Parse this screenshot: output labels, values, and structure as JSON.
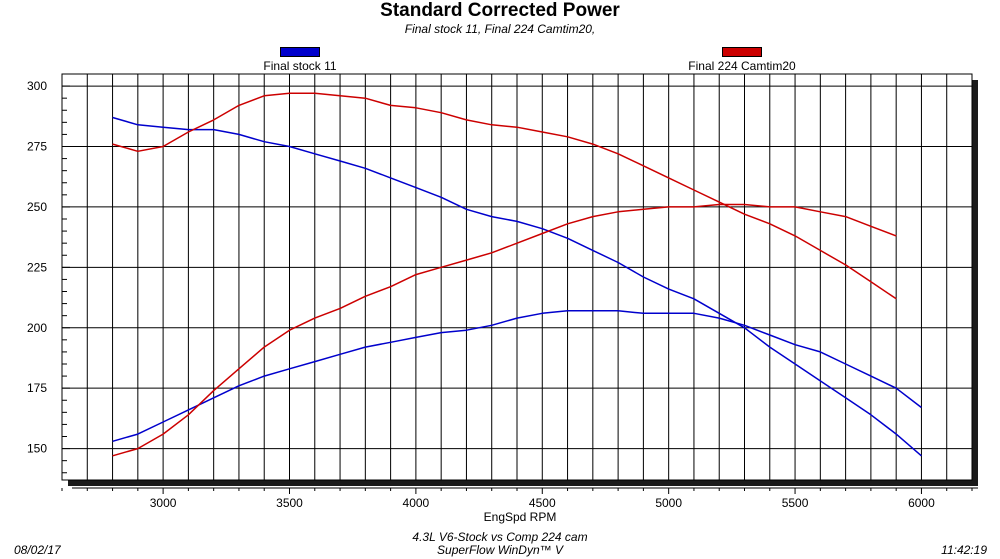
{
  "chart_data": {
    "type": "line",
    "title": "Standard Corrected Power",
    "subtitle": "Final stock 11,  Final 224 Camtim20,",
    "xlabel": "EngSpd RPM",
    "ylabel": "",
    "xlim": [
      2600,
      6200
    ],
    "ylim": [
      137,
      305
    ],
    "x_ticks": [
      3000,
      3500,
      4000,
      4500,
      5000,
      5500,
      6000
    ],
    "y_ticks": [
      150,
      175,
      200,
      225,
      250,
      275,
      300
    ],
    "grid": true,
    "legend": [
      "Final stock 11",
      "Final 224 Camtim20"
    ],
    "series": [
      {
        "name": "Final stock 11",
        "metric": "torque",
        "color": "#0000cc",
        "x": [
          2800,
          2900,
          3000,
          3100,
          3200,
          3300,
          3400,
          3500,
          3600,
          3700,
          3800,
          3900,
          4000,
          4100,
          4200,
          4300,
          4400,
          4500,
          4600,
          4700,
          4800,
          4900,
          5000,
          5100,
          5200,
          5300,
          5400,
          5500,
          5600,
          5700,
          5800,
          5900,
          6000
        ],
        "y": [
          287,
          284,
          283,
          282,
          282,
          280,
          277,
          275,
          272,
          269,
          266,
          262,
          258,
          254,
          249,
          246,
          244,
          241,
          237,
          232,
          227,
          221,
          216,
          212,
          206,
          200,
          192,
          185,
          178,
          171,
          164,
          156,
          147
        ]
      },
      {
        "name": "Final stock 11",
        "metric": "power",
        "color": "#0000cc",
        "x": [
          2800,
          2900,
          3000,
          3100,
          3200,
          3300,
          3400,
          3500,
          3600,
          3700,
          3800,
          3900,
          4000,
          4100,
          4200,
          4300,
          4400,
          4500,
          4600,
          4700,
          4800,
          4900,
          5000,
          5100,
          5200,
          5300,
          5400,
          5500,
          5600,
          5700,
          5800,
          5900,
          6000
        ],
        "y": [
          153,
          156,
          161,
          166,
          171,
          176,
          180,
          183,
          186,
          189,
          192,
          194,
          196,
          198,
          199,
          201,
          204,
          206,
          207,
          207,
          207,
          206,
          206,
          206,
          204,
          201,
          197,
          193,
          190,
          185,
          180,
          175,
          167
        ]
      },
      {
        "name": "Final 224 Camtim20",
        "metric": "torque",
        "color": "#cc0000",
        "x": [
          2800,
          2900,
          3000,
          3100,
          3200,
          3300,
          3400,
          3500,
          3600,
          3700,
          3800,
          3900,
          4000,
          4100,
          4200,
          4300,
          4400,
          4500,
          4600,
          4700,
          4800,
          4900,
          5000,
          5100,
          5200,
          5300,
          5400,
          5500,
          5600,
          5700,
          5800,
          5900
        ],
        "y": [
          276,
          273,
          275,
          281,
          286,
          292,
          296,
          297,
          297,
          296,
          295,
          292,
          291,
          289,
          286,
          284,
          283,
          281,
          279,
          276,
          272,
          267,
          262,
          257,
          252,
          247,
          243,
          238,
          232,
          226,
          219,
          212
        ]
      },
      {
        "name": "Final 224 Camtim20",
        "metric": "power",
        "color": "#cc0000",
        "x": [
          2800,
          2900,
          3000,
          3100,
          3200,
          3300,
          3400,
          3500,
          3600,
          3700,
          3800,
          3900,
          4000,
          4100,
          4200,
          4300,
          4400,
          4500,
          4600,
          4700,
          4800,
          4900,
          5000,
          5100,
          5200,
          5300,
          5400,
          5500,
          5600,
          5700,
          5800,
          5900
        ],
        "y": [
          147,
          150,
          156,
          164,
          174,
          183,
          192,
          199,
          204,
          208,
          213,
          217,
          222,
          225,
          228,
          231,
          235,
          239,
          243,
          246,
          248,
          249,
          250,
          250,
          251,
          251,
          250,
          250,
          248,
          246,
          242,
          238
        ]
      }
    ]
  },
  "footer": {
    "date": "08/02/17",
    "time": "11:42:19",
    "description": "4.3L V6-Stock vs Comp 224 cam",
    "software": "SuperFlow WinDyn™ V"
  },
  "colors": {
    "stock": "#0000cc",
    "cam": "#cc0000",
    "plot_background": "#ffffff",
    "shadow": "#1a1a1a"
  }
}
